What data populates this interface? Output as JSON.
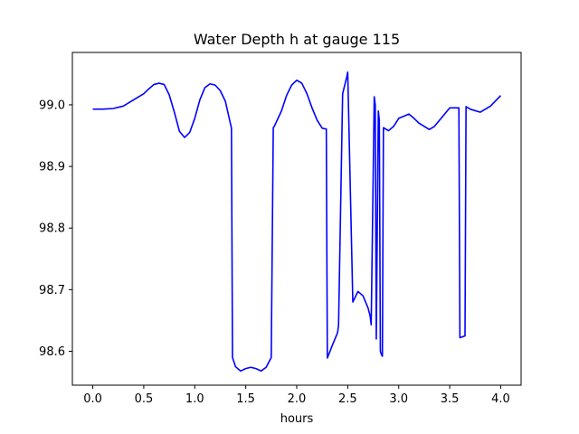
{
  "chart_data": {
    "type": "line",
    "title": "Water Depth h at gauge 115",
    "xlabel": "hours",
    "ylabel": "",
    "xlim": [
      -0.2,
      4.2
    ],
    "ylim": [
      98.545,
      99.085
    ],
    "xticks": [
      0.0,
      0.5,
      1.0,
      1.5,
      2.0,
      2.5,
      3.0,
      3.5,
      4.0
    ],
    "xtick_labels": [
      "0.0",
      "0.5",
      "1.0",
      "1.5",
      "2.0",
      "2.5",
      "3.0",
      "3.5",
      "4.0"
    ],
    "yticks": [
      98.6,
      98.7,
      98.8,
      98.9,
      99.0
    ],
    "ytick_labels": [
      "98.6",
      "98.7",
      "98.8",
      "98.9",
      "99.0"
    ],
    "grid": false,
    "legend": "none",
    "series": [
      {
        "color": "#0000ff",
        "x": [
          0.0,
          0.1,
          0.2,
          0.3,
          0.4,
          0.5,
          0.55,
          0.6,
          0.65,
          0.7,
          0.75,
          0.8,
          0.85,
          0.9,
          0.95,
          1.0,
          1.05,
          1.1,
          1.15,
          1.2,
          1.25,
          1.3,
          1.36,
          1.37,
          1.4,
          1.45,
          1.5,
          1.55,
          1.6,
          1.65,
          1.7,
          1.75,
          1.77,
          1.78,
          1.85,
          1.9,
          1.95,
          2.0,
          2.05,
          2.1,
          2.15,
          2.2,
          2.25,
          2.28,
          2.29,
          2.3,
          2.35,
          2.4,
          2.41,
          2.45,
          2.49,
          2.5,
          2.55,
          2.6,
          2.65,
          2.7,
          2.72,
          2.73,
          2.76,
          2.77,
          2.78,
          2.8,
          2.81,
          2.82,
          2.83,
          2.84,
          2.85,
          2.9,
          2.95,
          3.0,
          3.1,
          3.15,
          3.2,
          3.3,
          3.35,
          3.4,
          3.5,
          3.59,
          3.6,
          3.65,
          3.66,
          3.7,
          3.8,
          3.9,
          4.0
        ],
        "y": [
          98.993,
          98.993,
          98.994,
          98.998,
          99.008,
          99.018,
          99.026,
          99.033,
          99.035,
          99.033,
          99.016,
          98.988,
          98.957,
          98.947,
          98.955,
          98.978,
          99.008,
          99.028,
          99.034,
          99.032,
          99.023,
          99.006,
          98.962,
          98.59,
          98.575,
          98.568,
          98.572,
          98.574,
          98.572,
          98.568,
          98.574,
          98.59,
          98.963,
          98.965,
          98.99,
          99.015,
          99.032,
          99.04,
          99.035,
          99.018,
          98.995,
          98.975,
          98.962,
          98.961,
          98.961,
          98.589,
          98.61,
          98.63,
          98.642,
          99.018,
          99.045,
          99.053,
          98.68,
          98.697,
          98.69,
          98.67,
          98.657,
          98.643,
          99.013,
          99.0,
          98.62,
          98.99,
          98.975,
          98.6,
          98.595,
          98.592,
          98.963,
          98.958,
          98.965,
          98.978,
          98.985,
          98.978,
          98.97,
          98.96,
          98.965,
          98.975,
          98.995,
          98.995,
          98.622,
          98.625,
          98.997,
          98.993,
          98.988,
          98.998,
          99.015
        ]
      }
    ]
  }
}
